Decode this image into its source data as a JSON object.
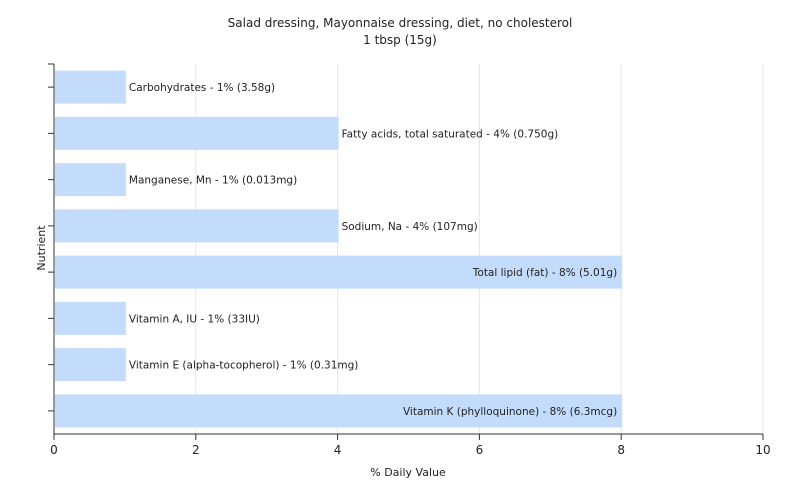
{
  "chart_data": {
    "type": "bar",
    "orientation": "horizontal",
    "title": "Salad dressing, Mayonnaise dressing, diet, no cholesterol",
    "subtitle": "1 tbsp (15g)",
    "xlabel": "% Daily Value",
    "ylabel": "Nutrient",
    "xlim": [
      0,
      10
    ],
    "xticks": [
      0,
      2,
      4,
      6,
      8,
      10
    ],
    "grid": true,
    "bar_color": "#c4dcfc",
    "categories": [
      "Carbohydrates",
      "Fatty acids, total saturated",
      "Manganese, Mn",
      "Sodium, Na",
      "Total lipid (fat)",
      "Vitamin A, IU",
      "Vitamin E (alpha-tocopherol)",
      "Vitamin K (phylloquinone)"
    ],
    "values": [
      1,
      4,
      1,
      4,
      8,
      1,
      1,
      8
    ],
    "labels": [
      "Carbohydrates - 1% (3.58g)",
      "Fatty acids, total saturated - 4% (0.750g)",
      "Manganese, Mn - 1% (0.013mg)",
      "Sodium, Na - 4% (107mg)",
      "Total lipid (fat) - 8% (5.01g)",
      "Vitamin A, IU - 1% (33IU)",
      "Vitamin E (alpha-tocopherol) - 1% (0.31mg)",
      "Vitamin K (phylloquinone) - 8% (6.3mcg)"
    ]
  }
}
